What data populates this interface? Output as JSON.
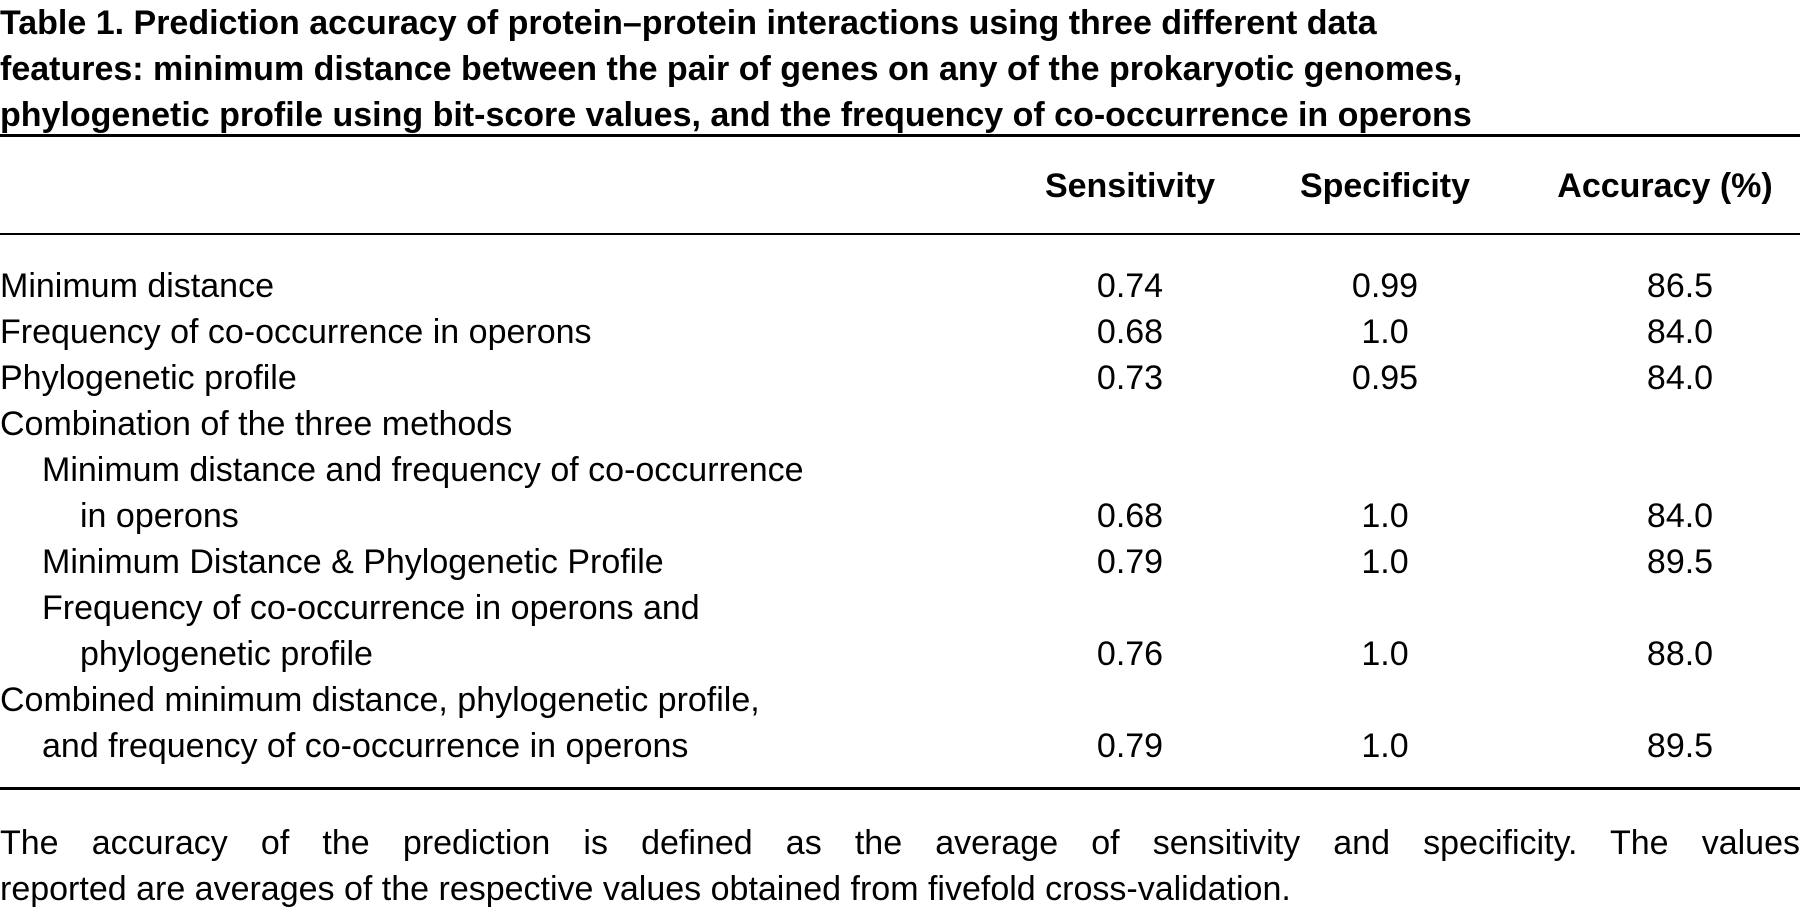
{
  "title": {
    "line1": "Table 1.   Prediction accuracy of protein–protein interactions using three different data",
    "line2": "features: minimum distance between the pair of genes on any of the prokaryotic genomes,",
    "line3": "phylogenetic profile using bit-score values, and the frequency of co-occurrence in operons"
  },
  "columns": {
    "sensitivity": "Sensitivity",
    "specificity": "Specificity",
    "accuracy": "Accuracy (%)"
  },
  "rows": [
    {
      "label": "Minimum distance",
      "sensitivity": "0.74",
      "specificity": "0.99",
      "accuracy": "86.5"
    },
    {
      "label": "Frequency of co-occurrence in operons",
      "sensitivity": "0.68",
      "specificity": "1.0",
      "accuracy": "84.0"
    },
    {
      "label": "Phylogenetic profile",
      "sensitivity": "0.73",
      "specificity": "0.95",
      "accuracy": "84.0"
    },
    {
      "label": "Combination of the three methods"
    },
    {
      "label": "Minimum distance and frequency of co-occurrence"
    },
    {
      "label": "in operons",
      "sensitivity": "0.68",
      "specificity": "1.0",
      "accuracy": "84.0"
    },
    {
      "label": "Minimum Distance & Phylogenetic Profile",
      "sensitivity": "0.79",
      "specificity": "1.0",
      "accuracy": "89.5"
    },
    {
      "label": "Frequency of co-occurrence in operons and"
    },
    {
      "label": "phylogenetic profile",
      "sensitivity": "0.76",
      "specificity": "1.0",
      "accuracy": "88.0"
    },
    {
      "label": "Combined minimum distance, phylogenetic profile,"
    },
    {
      "label": "and frequency of co-occurrence in operons",
      "sensitivity": "0.79",
      "specificity": "1.0",
      "accuracy": "89.5"
    }
  ],
  "footnote": {
    "line1": "The accuracy of the prediction is defined as the average of sensitivity and specificity. The values",
    "line2": "reported are averages of the respective values obtained from fivefold cross-validation."
  }
}
